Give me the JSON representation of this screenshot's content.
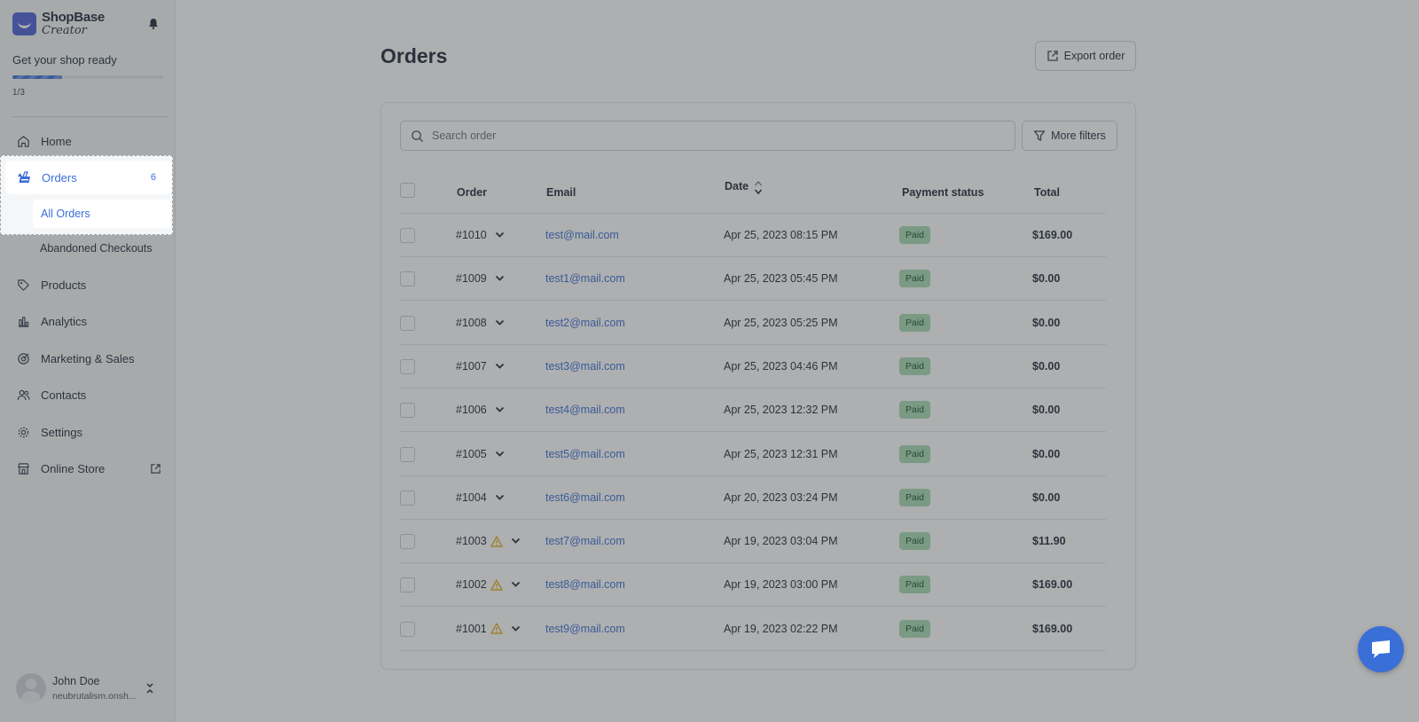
{
  "brand": {
    "name": "ShopBase",
    "sub": "Creator"
  },
  "setup": {
    "title": "Get your shop ready",
    "count": "1/3",
    "progress": 0.33
  },
  "nav": {
    "home": "Home",
    "orders": "Orders",
    "orders_badge": "6",
    "all_orders": "All Orders",
    "abandoned": "Abandoned Checkouts",
    "products": "Products",
    "analytics": "Analytics",
    "marketing": "Marketing & Sales",
    "contacts": "Contacts",
    "settings": "Settings",
    "online_store": "Online Store"
  },
  "user": {
    "name": "John Doe",
    "store": "neubrutalism.onsh..."
  },
  "page": {
    "title": "Orders",
    "export_label": "Export order"
  },
  "search": {
    "placeholder": "Search order",
    "value": "",
    "filters_label": "More filters"
  },
  "table": {
    "headers": {
      "order": "Order",
      "email": "Email",
      "date": "Date",
      "payment": "Payment status",
      "total": "Total"
    },
    "rows": [
      {
        "order": "#1010",
        "warn": false,
        "email": "test@mail.com",
        "date": "Apr 25, 2023 08:15 PM",
        "status": "Paid",
        "total": "$169.00"
      },
      {
        "order": "#1009",
        "warn": false,
        "email": "test1@mail.com",
        "date": "Apr 25, 2023 05:45 PM",
        "status": "Paid",
        "total": "$0.00"
      },
      {
        "order": "#1008",
        "warn": false,
        "email": "test2@mail.com",
        "date": "Apr 25, 2023 05:25 PM",
        "status": "Paid",
        "total": "$0.00"
      },
      {
        "order": "#1007",
        "warn": false,
        "email": "test3@mail.com",
        "date": "Apr 25, 2023 04:46 PM",
        "status": "Paid",
        "total": "$0.00"
      },
      {
        "order": "#1006",
        "warn": false,
        "email": "test4@mail.com",
        "date": "Apr 25, 2023 12:32 PM",
        "status": "Paid",
        "total": "$0.00"
      },
      {
        "order": "#1005",
        "warn": false,
        "email": "test5@mail.com",
        "date": "Apr 25, 2023 12:31 PM",
        "status": "Paid",
        "total": "$0.00"
      },
      {
        "order": "#1004",
        "warn": false,
        "email": "test6@mail.com",
        "date": "Apr 20, 2023 03:24 PM",
        "status": "Paid",
        "total": "$0.00"
      },
      {
        "order": "#1003",
        "warn": true,
        "email": "test7@mail.com",
        "date": "Apr 19, 2023 03:04 PM",
        "status": "Paid",
        "total": "$11.90"
      },
      {
        "order": "#1002",
        "warn": true,
        "email": "test8@mail.com",
        "date": "Apr 19, 2023 03:00 PM",
        "status": "Paid",
        "total": "$169.00"
      },
      {
        "order": "#1001",
        "warn": true,
        "email": "test9@mail.com",
        "date": "Apr 19, 2023 02:22 PM",
        "status": "Paid",
        "total": "$169.00"
      }
    ]
  },
  "colors": {
    "accent": "#3b6fd8",
    "paid_badge": "#a7dbb4",
    "warning": "#e0a800",
    "brand": "#4f5fd6"
  }
}
